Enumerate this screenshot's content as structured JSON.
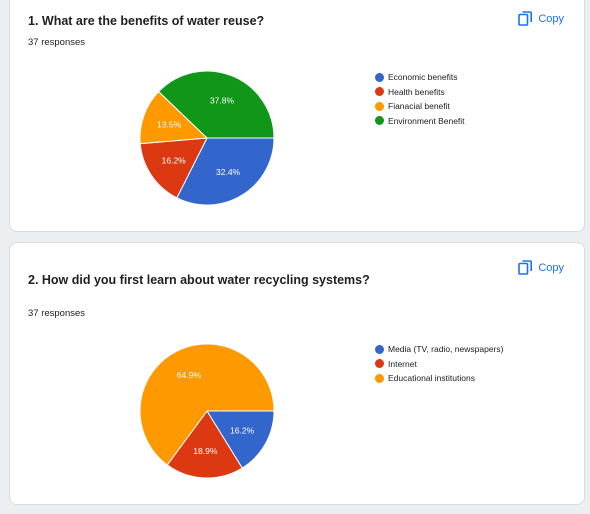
{
  "colors": {
    "accent": "#1a73e8",
    "slice_blue": "#3366cc",
    "slice_red": "#dc3912",
    "slice_orange": "#ff9900",
    "slice_green": "#109618"
  },
  "copy_label": "Copy",
  "copy_icon": "copy-icon",
  "questions": [
    {
      "title": "1.  What are the benefits of water reuse?",
      "responses": "37 responses"
    },
    {
      "title": "2. How did you first learn about water recycling systems?",
      "responses": "37 responses"
    }
  ],
  "chart_data": [
    {
      "type": "pie",
      "title": "1.  What are the benefits of water reuse?",
      "legend": "right",
      "slices": [
        {
          "label": "Economic benefits",
          "value": 32.4,
          "display": "32.4%",
          "color": "#3366cc"
        },
        {
          "label": "Health benefits",
          "value": 16.2,
          "display": "16.2%",
          "color": "#dc3912"
        },
        {
          "label": "Fianacial benefit",
          "value": 13.5,
          "display": "13.5%",
          "color": "#ff9900"
        },
        {
          "label": "Environment Benefit",
          "value": 37.8,
          "display": "37.8%",
          "color": "#109618"
        }
      ]
    },
    {
      "type": "pie",
      "title": "2. How did you first learn about water recycling systems?",
      "legend": "right",
      "slices": [
        {
          "label": "Media (TV, radio, newspapers)",
          "value": 16.2,
          "display": "16.2%",
          "color": "#3366cc"
        },
        {
          "label": "Internet",
          "value": 18.9,
          "display": "18.9%",
          "color": "#dc3912"
        },
        {
          "label": "Educational institutions",
          "value": 64.9,
          "display": "64.9%",
          "color": "#ff9900"
        }
      ]
    }
  ]
}
